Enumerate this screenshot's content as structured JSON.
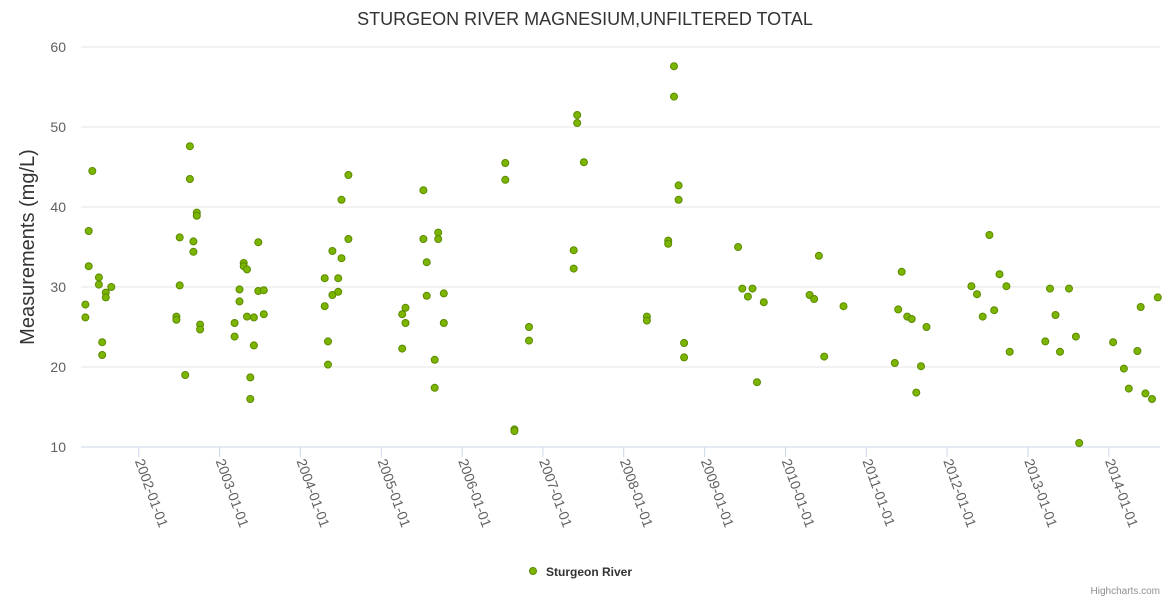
{
  "chart_data": {
    "type": "scatter",
    "title": "STURGEON RIVER MAGNESIUM,UNFILTERED TOTAL",
    "ylabel": "Measurements (mg/L)",
    "xlabel": "",
    "ylim": [
      10,
      60
    ],
    "yticks": [
      10,
      20,
      30,
      40,
      50,
      60
    ],
    "xlim": [
      "2001-04-15",
      "2014-08-20"
    ],
    "xticks": [
      "2002-01-01",
      "2003-01-01",
      "2004-01-01",
      "2005-01-01",
      "2006-01-01",
      "2007-01-01",
      "2008-01-01",
      "2009-01-01",
      "2010-01-01",
      "2011-01-01",
      "2012-01-01",
      "2013-01-01",
      "2014-01-01"
    ],
    "grid": true,
    "legend_position": "bottom-center",
    "series": [
      {
        "name": "Sturgeon River",
        "color": "#7cb500",
        "points": [
          [
            "2001-05-05",
            27.8
          ],
          [
            "2001-05-05",
            26.2
          ],
          [
            "2001-05-20",
            37.0
          ],
          [
            "2001-05-20",
            32.6
          ],
          [
            "2001-06-05",
            44.5
          ],
          [
            "2001-07-05",
            31.2
          ],
          [
            "2001-07-05",
            30.3
          ],
          [
            "2001-07-20",
            23.1
          ],
          [
            "2001-07-20",
            21.5
          ],
          [
            "2001-08-05",
            29.3
          ],
          [
            "2001-08-05",
            28.7
          ],
          [
            "2001-08-30",
            30.0
          ],
          [
            "2002-06-20",
            26.3
          ],
          [
            "2002-06-20",
            25.9
          ],
          [
            "2002-07-05",
            36.2
          ],
          [
            "2002-07-05",
            30.2
          ],
          [
            "2002-07-30",
            19.0
          ],
          [
            "2002-08-20",
            47.6
          ],
          [
            "2002-08-20",
            43.5
          ],
          [
            "2002-09-05",
            35.7
          ],
          [
            "2002-09-05",
            34.4
          ],
          [
            "2002-09-20",
            39.3
          ],
          [
            "2002-09-20",
            38.9
          ],
          [
            "2002-10-05",
            25.3
          ],
          [
            "2002-10-05",
            24.7
          ],
          [
            "2003-03-10",
            25.5
          ],
          [
            "2003-03-10",
            23.8
          ],
          [
            "2003-04-01",
            29.7
          ],
          [
            "2003-04-01",
            28.2
          ],
          [
            "2003-04-20",
            33.0
          ],
          [
            "2003-04-20",
            32.6
          ],
          [
            "2003-05-05",
            32.2
          ],
          [
            "2003-05-05",
            26.3
          ],
          [
            "2003-05-20",
            18.7
          ],
          [
            "2003-05-20",
            16.0
          ],
          [
            "2003-06-05",
            26.2
          ],
          [
            "2003-06-05",
            22.7
          ],
          [
            "2003-06-25",
            35.6
          ],
          [
            "2003-06-25",
            29.5
          ],
          [
            "2003-07-20",
            29.6
          ],
          [
            "2003-07-20",
            26.6
          ],
          [
            "2004-04-20",
            31.1
          ],
          [
            "2004-04-20",
            27.6
          ],
          [
            "2004-05-05",
            23.2
          ],
          [
            "2004-05-05",
            20.3
          ],
          [
            "2004-05-25",
            34.5
          ],
          [
            "2004-05-25",
            29.0
          ],
          [
            "2004-06-20",
            31.1
          ],
          [
            "2004-06-20",
            29.4
          ],
          [
            "2004-07-05",
            40.9
          ],
          [
            "2004-07-05",
            33.6
          ],
          [
            "2004-08-05",
            44.0
          ],
          [
            "2004-08-05",
            36.0
          ],
          [
            "2005-04-05",
            26.6
          ],
          [
            "2005-04-05",
            22.3
          ],
          [
            "2005-04-20",
            27.4
          ],
          [
            "2005-04-20",
            25.5
          ],
          [
            "2005-07-10",
            42.1
          ],
          [
            "2005-07-10",
            36.0
          ],
          [
            "2005-07-25",
            33.1
          ],
          [
            "2005-07-25",
            28.9
          ],
          [
            "2005-08-30",
            20.9
          ],
          [
            "2005-08-30",
            17.4
          ],
          [
            "2005-09-15",
            36.8
          ],
          [
            "2005-09-15",
            36.0
          ],
          [
            "2005-10-10",
            29.2
          ],
          [
            "2005-10-10",
            25.5
          ],
          [
            "2006-07-15",
            45.5
          ],
          [
            "2006-07-15",
            43.4
          ],
          [
            "2006-08-25",
            12.2
          ],
          [
            "2006-08-25",
            12.0
          ],
          [
            "2006-10-30",
            25.0
          ],
          [
            "2006-10-30",
            23.3
          ],
          [
            "2007-05-20",
            34.6
          ],
          [
            "2007-05-20",
            32.3
          ],
          [
            "2007-06-05",
            51.5
          ],
          [
            "2007-06-05",
            50.5
          ],
          [
            "2007-07-05",
            45.6
          ],
          [
            "2008-04-15",
            26.3
          ],
          [
            "2008-04-15",
            25.8
          ],
          [
            "2008-07-20",
            35.8
          ],
          [
            "2008-07-20",
            35.4
          ],
          [
            "2008-08-15",
            57.6
          ],
          [
            "2008-08-15",
            53.8
          ],
          [
            "2008-09-05",
            42.7
          ],
          [
            "2008-09-05",
            40.9
          ],
          [
            "2008-09-30",
            23.0
          ],
          [
            "2008-09-30",
            21.2
          ],
          [
            "2009-06-01",
            35.0
          ],
          [
            "2009-06-20",
            29.8
          ],
          [
            "2009-07-15",
            28.8
          ],
          [
            "2009-08-05",
            29.8
          ],
          [
            "2009-08-25",
            18.1
          ],
          [
            "2009-09-25",
            28.1
          ],
          [
            "2010-04-20",
            29.0
          ],
          [
            "2010-05-10",
            28.5
          ],
          [
            "2010-06-01",
            33.9
          ],
          [
            "2010-06-25",
            21.3
          ],
          [
            "2010-09-20",
            27.6
          ],
          [
            "2011-05-10",
            20.5
          ],
          [
            "2011-05-25",
            27.2
          ],
          [
            "2011-06-10",
            31.9
          ],
          [
            "2011-07-05",
            26.3
          ],
          [
            "2011-07-25",
            26.0
          ],
          [
            "2011-08-15",
            16.8
          ],
          [
            "2011-09-05",
            20.1
          ],
          [
            "2011-09-30",
            25.0
          ],
          [
            "2012-04-20",
            30.1
          ],
          [
            "2012-05-15",
            29.1
          ],
          [
            "2012-06-10",
            26.3
          ],
          [
            "2012-07-10",
            36.5
          ],
          [
            "2012-08-01",
            27.1
          ],
          [
            "2012-08-25",
            31.6
          ],
          [
            "2012-09-25",
            30.1
          ],
          [
            "2012-10-10",
            21.9
          ],
          [
            "2013-03-20",
            23.2
          ],
          [
            "2013-04-10",
            29.8
          ],
          [
            "2013-05-05",
            26.5
          ],
          [
            "2013-05-25",
            21.9
          ],
          [
            "2013-07-05",
            29.8
          ],
          [
            "2013-08-05",
            23.8
          ],
          [
            "2013-08-20",
            10.5
          ],
          [
            "2014-01-20",
            23.1
          ],
          [
            "2014-03-10",
            19.8
          ],
          [
            "2014-04-01",
            17.3
          ],
          [
            "2014-05-10",
            22.0
          ],
          [
            "2014-05-25",
            27.5
          ],
          [
            "2014-06-15",
            16.7
          ],
          [
            "2014-07-15",
            16.0
          ],
          [
            "2014-08-10",
            28.7
          ]
        ]
      }
    ]
  },
  "credits": "Highcharts.com"
}
